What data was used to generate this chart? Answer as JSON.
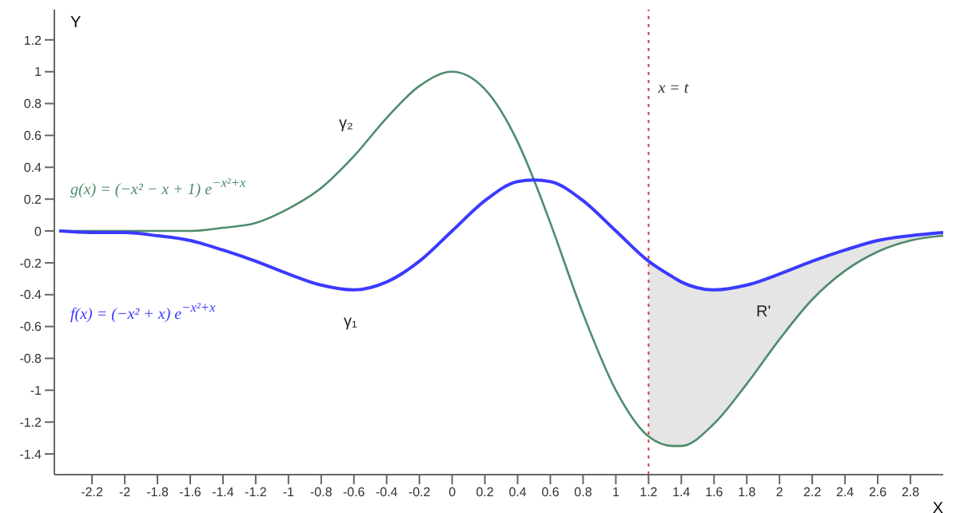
{
  "chart_data": {
    "type": "line",
    "x": [
      -2.4,
      -2.2,
      -2.0,
      -1.8,
      -1.6,
      -1.4,
      -1.2,
      -1.0,
      -0.8,
      -0.6,
      -0.4,
      -0.2,
      0,
      0.2,
      0.4,
      0.5,
      0.6,
      0.8,
      1.0,
      1.2,
      1.35,
      1.4,
      1.6,
      1.8,
      2.0,
      2.2,
      2.4,
      2.6,
      2.8,
      3.0
    ],
    "series": [
      {
        "name": "g(x) = (−x² − x + 1) e$^{−x²+x}$",
        "color": "#4d8c6c",
        "values": [
          0,
          0,
          0,
          0,
          0,
          0.02,
          0.05,
          0.14,
          0.27,
          0.47,
          0.71,
          0.91,
          1,
          0.89,
          0.56,
          0.32,
          0.05,
          -0.52,
          -1,
          -1.29,
          -1.35,
          -1.35,
          -1.21,
          -0.96,
          -0.68,
          -0.43,
          -0.25,
          -0.13,
          -0.06,
          -0.03
        ]
      },
      {
        "name": "f(x) = (−x² + x) e$^{−x²+x}$",
        "color": "#3a3aff",
        "values": [
          0,
          -0.01,
          -0.01,
          -0.03,
          -0.06,
          -0.12,
          -0.19,
          -0.27,
          -0.34,
          -0.37,
          -0.32,
          -0.19,
          0,
          0.19,
          0.31,
          0.32,
          0.31,
          0.19,
          0,
          -0.19,
          -0.29,
          -0.32,
          -0.37,
          -0.34,
          -0.27,
          -0.19,
          -0.12,
          -0.06,
          -0.03,
          -0.01
        ],
        "lower": [
          null,
          null,
          null,
          null,
          null,
          null,
          null,
          null,
          null,
          null,
          null,
          null,
          null,
          null,
          null,
          null,
          null,
          null,
          null,
          -1.29,
          -1.35,
          -1.35,
          -1.21,
          -0.96,
          -0.68,
          -0.43,
          -0.25,
          -0.13,
          -0.06,
          -0.03
        ],
        "upper": [
          null,
          null,
          null,
          null,
          null,
          null,
          null,
          null,
          null,
          null,
          null,
          null,
          null,
          null,
          null,
          null,
          null,
          null,
          null,
          -0.19,
          -0.29,
          -0.32,
          -0.37,
          -0.34,
          -0.27,
          -0.19,
          -0.12,
          -0.06,
          -0.03,
          -0.01
        ]
      }
    ],
    "xlabel": "X",
    "ylabel": "Y",
    "xlim": [
      -2.43,
      3.0
    ],
    "ylim": [
      -1.53,
      1.39
    ],
    "xticks": [
      -2.2,
      -2,
      -1.8,
      -1.6,
      -1.4,
      -1.2,
      -1,
      -0.8,
      -0.6,
      -0.4,
      -0.2,
      0,
      0.2,
      0.4,
      0.6,
      0.8,
      1,
      1.2,
      1.4,
      1.6,
      1.8,
      2,
      2.2,
      2.4,
      2.6,
      2.8
    ],
    "yticks": [
      -1.4,
      -1.2,
      -1,
      -0.8,
      -0.6,
      -0.4,
      -0.2,
      0,
      0.2,
      0.4,
      0.6,
      0.8,
      1,
      1.2
    ],
    "ref_lines": [
      {
        "axis": "x",
        "value": 1.2,
        "label": "x = t",
        "color": "#d04040",
        "line_style": "dotted"
      }
    ],
    "annotations": [
      "γ₂",
      "γ₁",
      "R'"
    ],
    "grid": false,
    "legend": false,
    "marker": "none",
    "line_style": "solid"
  }
}
